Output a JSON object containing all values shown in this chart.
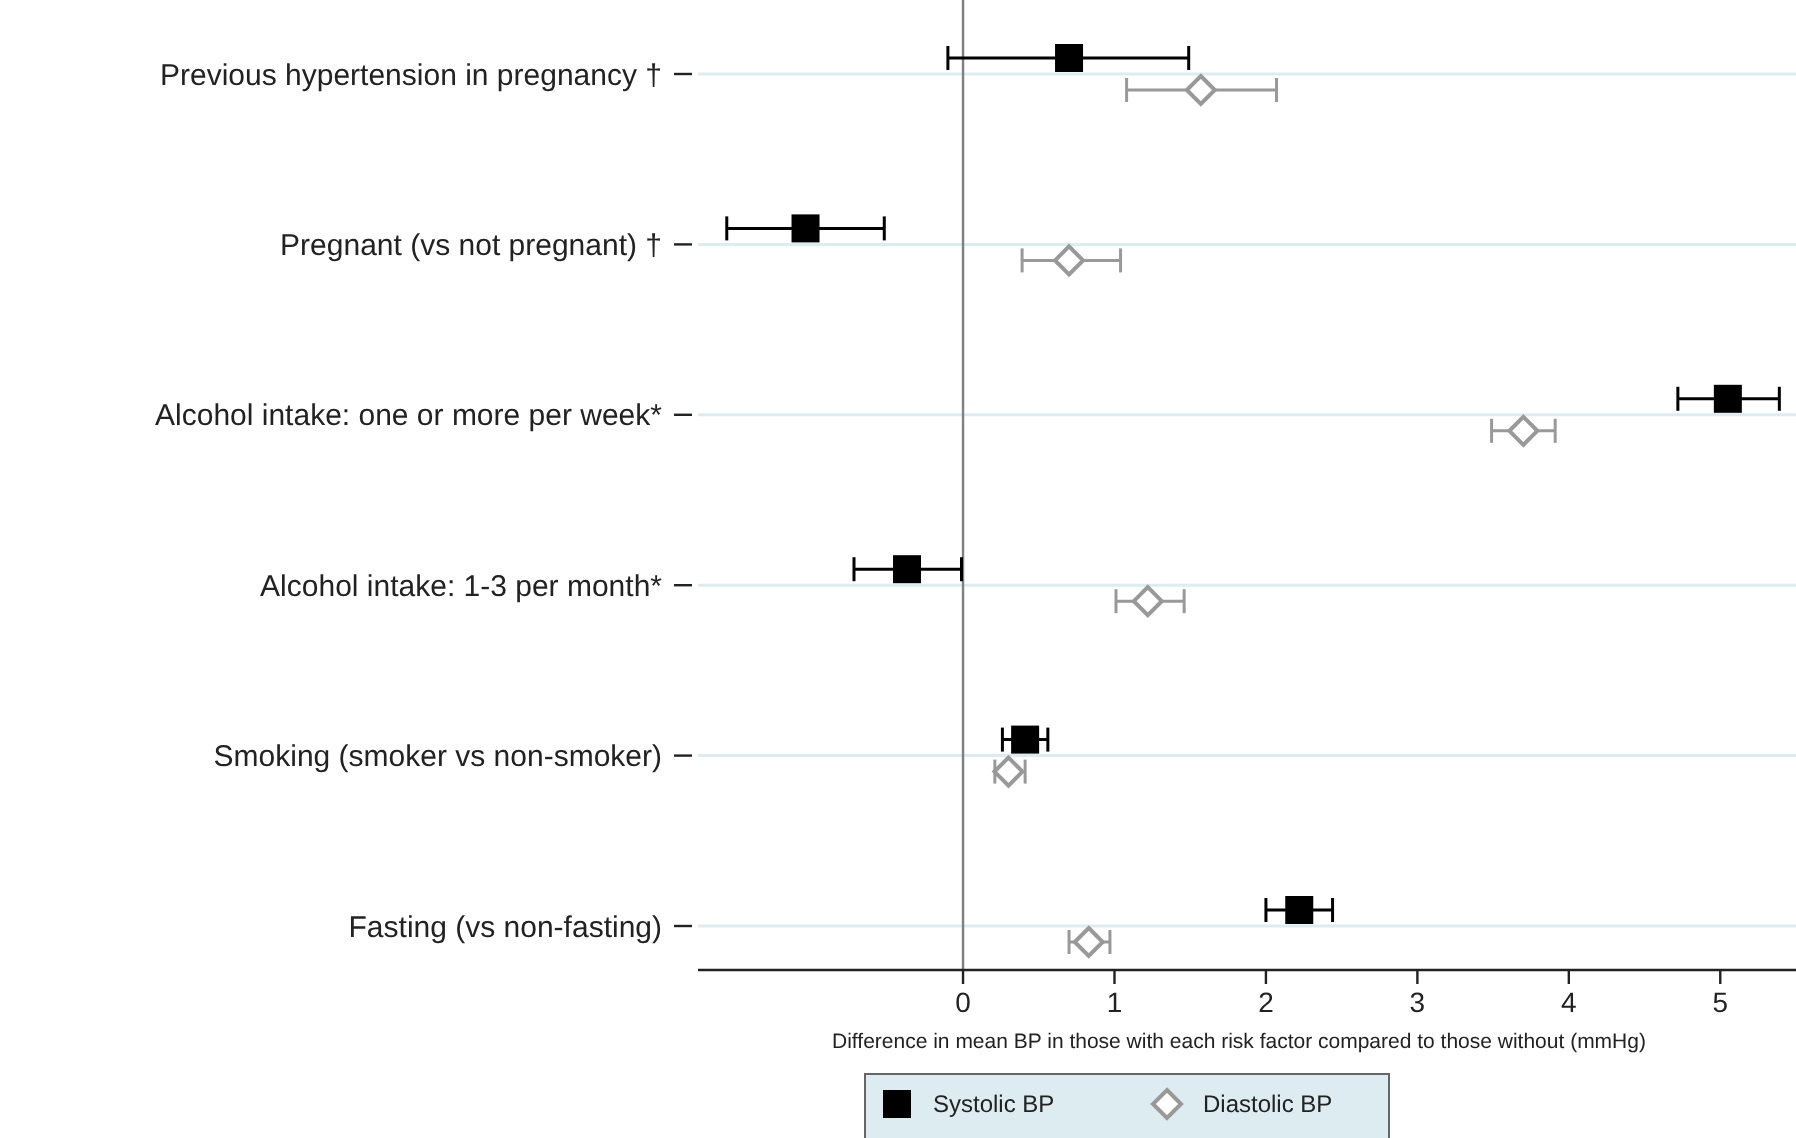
{
  "chart_data": {
    "type": "scatter",
    "orientation": "horizontal",
    "xlabel": "Difference in mean BP in those with each risk factor compared to those without (mmHg)",
    "categories": [
      "Previous hypertension in pregnancy †",
      "Pregnant (vs not pregnant) †",
      "Alcohol intake: one or more per week*",
      "Alcohol intake: 1-3 per month*",
      "Smoking (smoker vs non-smoker)",
      "Fasting (vs non-fasting)"
    ],
    "series": [
      {
        "name": "Systolic BP",
        "color": "#000000",
        "marker": "square",
        "values": [
          0.7,
          -1.04,
          5.05,
          -0.37,
          0.41,
          2.22
        ],
        "errors": [
          [
            -0.1,
            1.49
          ],
          [
            -1.56,
            -0.52
          ],
          [
            4.72,
            5.39
          ],
          [
            -0.72,
            -0.01
          ],
          [
            0.26,
            0.56
          ],
          [
            2.0,
            2.44
          ]
        ]
      },
      {
        "name": "Diastolic BP",
        "color": "#999999",
        "marker": "diamond",
        "values": [
          1.57,
          0.7,
          3.7,
          1.22,
          0.3,
          0.83
        ],
        "errors": [
          [
            1.08,
            2.07
          ],
          [
            0.39,
            1.04
          ],
          [
            3.49,
            3.91
          ],
          [
            1.01,
            1.46
          ],
          [
            0.21,
            0.41
          ],
          [
            0.7,
            0.97
          ]
        ]
      }
    ],
    "xlim": [
      -1.75,
      5.5
    ],
    "xticks": [
      0,
      1,
      2,
      3,
      4,
      5
    ],
    "ref_lines": [
      {
        "axis": "x",
        "value": 0,
        "color": "#808080"
      }
    ],
    "grid": "y",
    "legend": "bottom"
  }
}
